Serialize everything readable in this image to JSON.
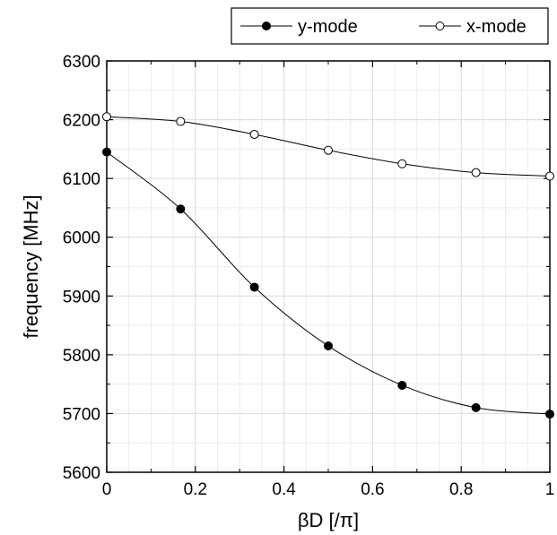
{
  "chart_data": {
    "type": "line",
    "xlabel": "βD [/π]",
    "ylabel": "frequency [MHz]",
    "xlim": [
      0,
      1
    ],
    "ylim": [
      5600,
      6300
    ],
    "x_ticks": [
      "0",
      "0.2",
      "0.4",
      "0.6",
      "0.8",
      "1"
    ],
    "y_ticks": [
      "5600",
      "5700",
      "5800",
      "5900",
      "6000",
      "6100",
      "6200",
      "6300"
    ],
    "grid": true,
    "legend_position": "top-right, above plot",
    "series": [
      {
        "name": "y-mode",
        "marker": "filled-circle",
        "color": "#000000",
        "x": [
          0,
          0.1667,
          0.3333,
          0.5,
          0.6667,
          0.8333,
          1
        ],
        "y": [
          6145,
          6048,
          5915,
          5815,
          5748,
          5710,
          5699
        ]
      },
      {
        "name": "x-mode",
        "marker": "open-circle",
        "color": "#000000",
        "x": [
          0,
          0.1667,
          0.3333,
          0.5,
          0.6667,
          0.8333,
          1
        ],
        "y": [
          6205,
          6197,
          6175,
          6148,
          6125,
          6110,
          6104
        ]
      }
    ]
  }
}
